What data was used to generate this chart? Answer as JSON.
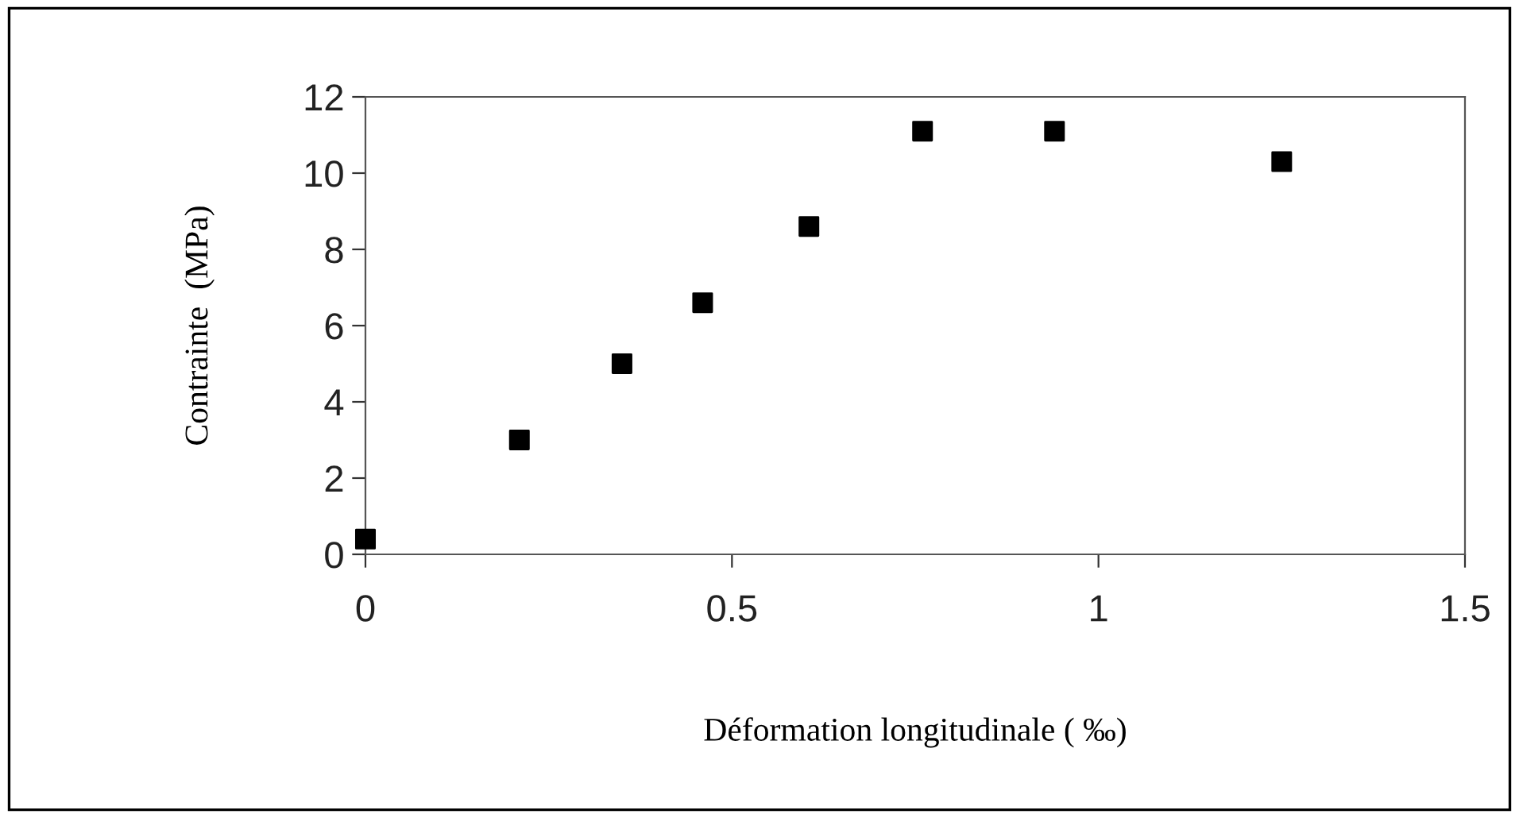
{
  "chart_data": {
    "type": "scatter",
    "xlabel": "Déformation longitudinale ( ‰)",
    "ylabel": "Contrainte  (MPa)",
    "x": [
      0,
      0.21,
      0.35,
      0.46,
      0.605,
      0.76,
      0.94,
      1.25
    ],
    "series": [
      {
        "color": "#000000",
        "values": [
          0.4,
          3.0,
          5.0,
          6.6,
          8.6,
          11.1,
          11.1,
          10.3
        ]
      }
    ],
    "xlim": [
      0,
      1.5
    ],
    "xticks": [
      0,
      0.5,
      1,
      1.5
    ],
    "ylim": [
      0,
      12
    ],
    "yticks": [
      0,
      2,
      4,
      6,
      8,
      10,
      12
    ],
    "grid": false,
    "legend": false,
    "marker": "square"
  }
}
